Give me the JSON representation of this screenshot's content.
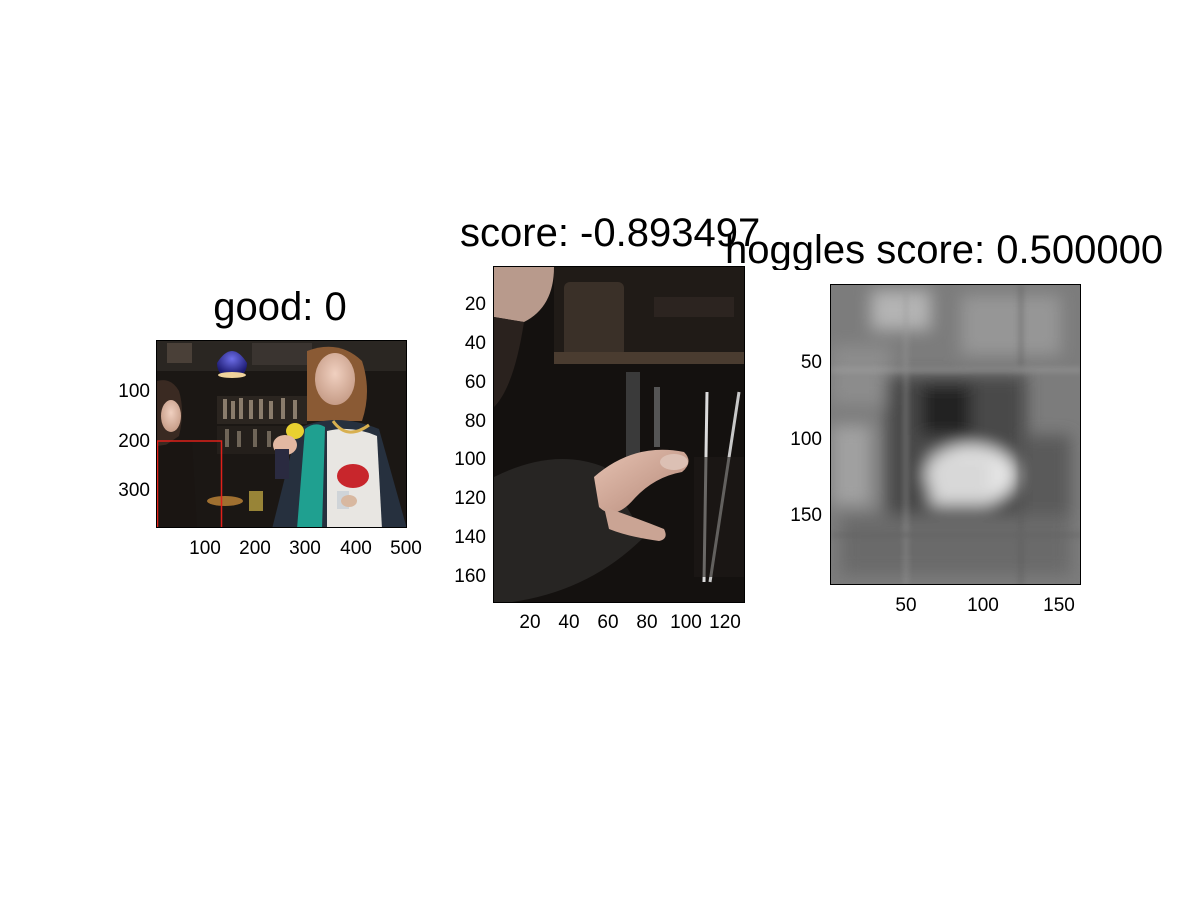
{
  "chart_data": [
    {
      "type": "image",
      "title": "good: 0",
      "xticks": [
        100,
        200,
        300,
        400,
        500
      ],
      "yticks": [
        100,
        200,
        300
      ],
      "xlim": [
        0,
        500
      ],
      "ylim": [
        0,
        375
      ],
      "annotation": {
        "type": "bounding-box",
        "color": "#e0201a"
      }
    },
    {
      "type": "image",
      "title": "score: -0.893497",
      "xticks": [
        20,
        40,
        60,
        80,
        100,
        120
      ],
      "yticks": [
        20,
        40,
        60,
        80,
        100,
        120,
        140,
        160
      ],
      "xlim": [
        0,
        128
      ],
      "ylim": [
        0,
        172
      ]
    },
    {
      "type": "heatmap",
      "title": "hoggles score: 0.500000",
      "xticks": [
        50,
        100,
        150
      ],
      "yticks": [
        50,
        100,
        150
      ],
      "xlim": [
        0,
        162
      ],
      "ylim": [
        0,
        194
      ],
      "colormap": "gray"
    }
  ]
}
